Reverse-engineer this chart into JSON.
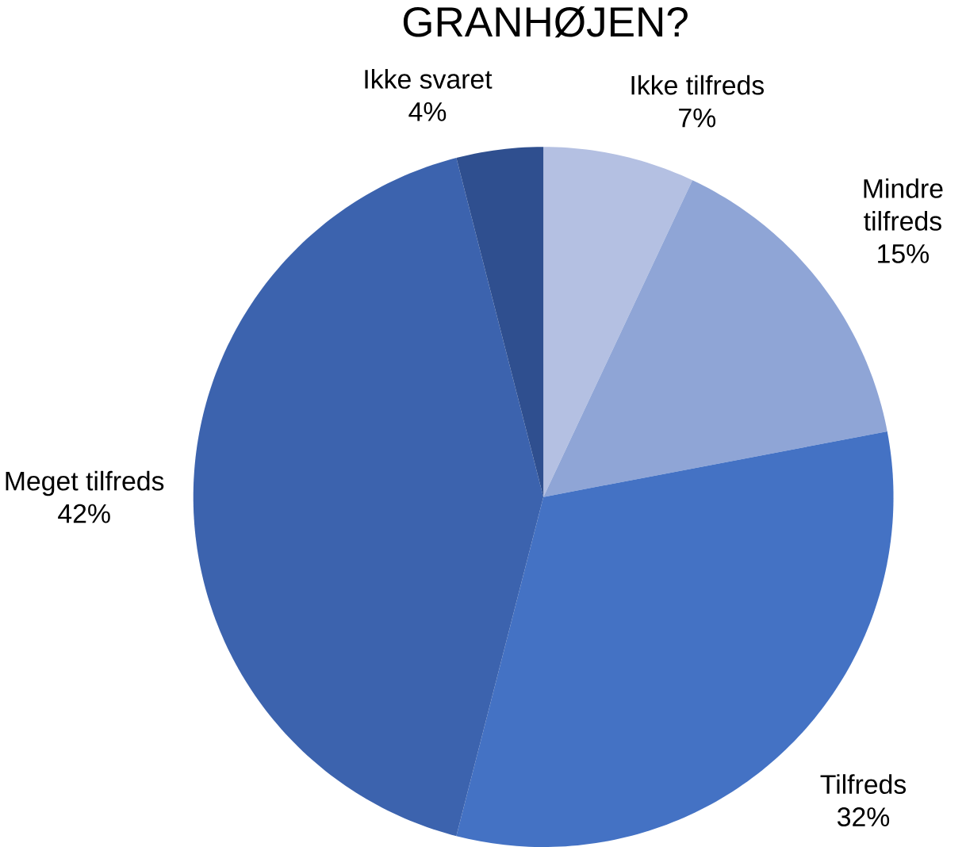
{
  "chart_data": {
    "type": "pie",
    "title": "GRANHØJEN?",
    "categories": [
      "Ikke tilfreds",
      "Mindre tilfreds",
      "Tilfreds",
      "Meget tilfreds",
      "Ikke svaret"
    ],
    "values": [
      7,
      15,
      32,
      42,
      4
    ],
    "value_labels": [
      "7%",
      "15%",
      "32%",
      "42%",
      "4%"
    ],
    "colors": [
      "#b4c0e2",
      "#8fa5d6",
      "#4472c4",
      "#3c63ae",
      "#2f4f8f"
    ]
  }
}
